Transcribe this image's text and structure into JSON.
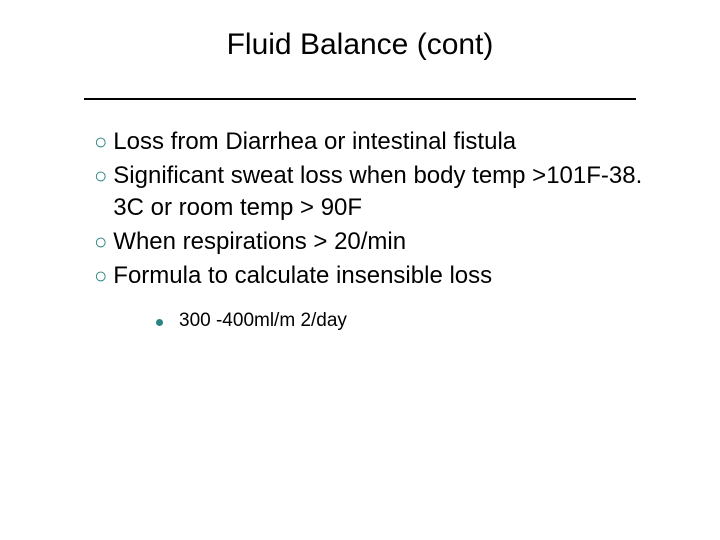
{
  "slide": {
    "title": "Fluid Balance (cont)",
    "title_fontsize": 30,
    "title_color": "#000000",
    "divider_color": "#000000",
    "bullet_color": "#2b8383",
    "body_fontsize": 24,
    "sub_fontsize": 19,
    "background_color": "#ffffff",
    "bullets": [
      "Loss from Diarrhea or intestinal fistula",
      "Significant sweat loss when body temp >101F-38. 3C or room temp > 90F",
      "When respirations > 20/min",
      "Formula to calculate insensible loss"
    ],
    "sub_bullets": [
      "300 -400ml/m 2/day"
    ]
  }
}
